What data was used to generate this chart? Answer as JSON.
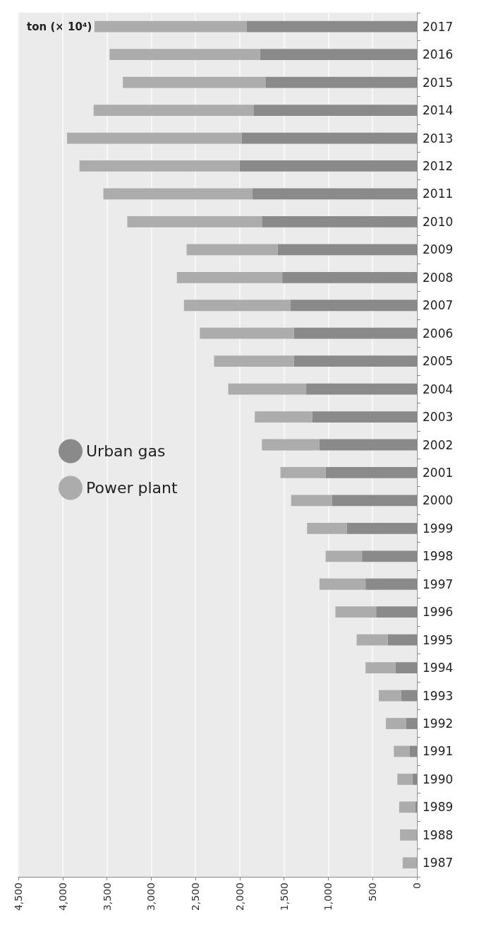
{
  "chart_data": {
    "type": "bar",
    "orientation": "horizontal",
    "stacked": true,
    "xlabel": "ton (× 10⁴)",
    "categories": [
      "2017",
      "2016",
      "2015",
      "2014",
      "2013",
      "2012",
      "2011",
      "2010",
      "2009",
      "2008",
      "2007",
      "2006",
      "2005",
      "2004",
      "2003",
      "2002",
      "2001",
      "2000",
      "1999",
      "1998",
      "1997",
      "1996",
      "1995",
      "1994",
      "1993",
      "1992",
      "1991",
      "1990",
      "1989",
      "1988",
      "1987"
    ],
    "series": [
      {
        "name": "Urban gas",
        "color": "#8a8a8a",
        "values": [
          1920,
          1770,
          1710,
          1840,
          1980,
          2000,
          1860,
          1750,
          1570,
          1520,
          1430,
          1390,
          1390,
          1250,
          1180,
          1100,
          1030,
          960,
          790,
          620,
          580,
          460,
          330,
          240,
          180,
          120,
          80,
          50,
          20,
          0,
          0
        ]
      },
      {
        "name": "Power plant",
        "color": "#acacac",
        "values": [
          1720,
          1700,
          1610,
          1810,
          1970,
          1810,
          1680,
          1520,
          1030,
          1190,
          1200,
          1060,
          900,
          880,
          650,
          650,
          510,
          460,
          450,
          410,
          520,
          460,
          350,
          340,
          250,
          230,
          180,
          170,
          180,
          190,
          160
        ]
      }
    ],
    "xlim": [
      4500,
      0
    ],
    "xticks": [
      {
        "value": 4500,
        "label": "4,500"
      },
      {
        "value": 4000,
        "label": "4,000"
      },
      {
        "value": 3500,
        "label": "3,500"
      },
      {
        "value": 3000,
        "label": "3,000"
      },
      {
        "value": 2500,
        "label": "2,500"
      },
      {
        "value": 2000,
        "label": "2,000"
      },
      {
        "value": 1500,
        "label": "1,500"
      },
      {
        "value": 1000,
        "label": "1,000"
      },
      {
        "value": 500,
        "label": "500"
      },
      0
    ],
    "grid": "x",
    "legend": "left"
  }
}
